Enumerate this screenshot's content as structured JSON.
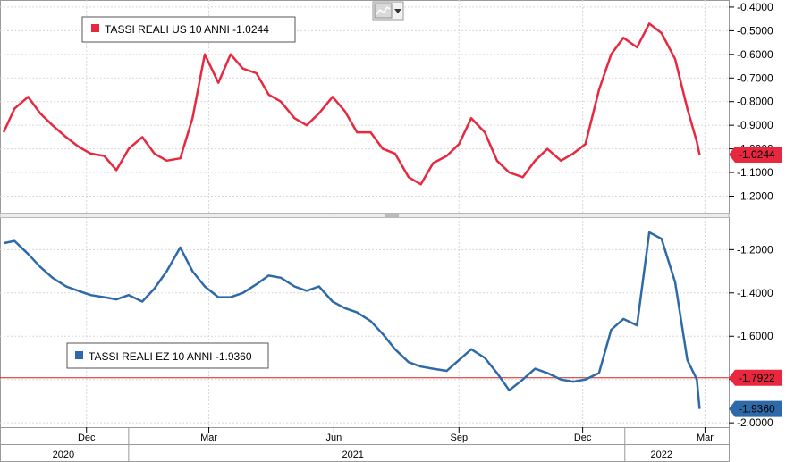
{
  "toolbar": {
    "chart_type_icon": "line-chart-icon",
    "dropdown_icon": "chevron-down-icon"
  },
  "chart_data": [
    {
      "type": "line",
      "legend": "TASSI REALI US 10 ANNI -1.0244",
      "series": [
        {
          "color": "#e8283f",
          "x": [
            "2020-10-01",
            "2020-10-09",
            "2020-10-19",
            "2020-10-28",
            "2020-11-06",
            "2020-11-16",
            "2020-11-25",
            "2020-12-04",
            "2020-12-14",
            "2020-12-23",
            "2021-01-01",
            "2021-01-11",
            "2021-01-20",
            "2021-01-29",
            "2021-02-08",
            "2021-02-17",
            "2021-02-26",
            "2021-03-08",
            "2021-03-17",
            "2021-03-26",
            "2021-04-05",
            "2021-04-14",
            "2021-04-23",
            "2021-05-03",
            "2021-05-12",
            "2021-05-21",
            "2021-05-31",
            "2021-06-09",
            "2021-06-18",
            "2021-06-28",
            "2021-07-07",
            "2021-07-16",
            "2021-07-26",
            "2021-08-04",
            "2021-08-13",
            "2021-08-23",
            "2021-09-01",
            "2021-09-10",
            "2021-09-20",
            "2021-09-29",
            "2021-10-08",
            "2021-10-18",
            "2021-10-27",
            "2021-11-05",
            "2021-11-15",
            "2021-11-24",
            "2021-12-03",
            "2021-12-13",
            "2021-12-22",
            "2021-12-31",
            "2022-01-10",
            "2022-01-19",
            "2022-01-28",
            "2022-02-07",
            "2022-02-16",
            "2022-02-23",
            "2022-02-25"
          ],
          "y": [
            -0.93,
            -0.83,
            -0.78,
            -0.85,
            -0.9,
            -0.95,
            -0.99,
            -1.02,
            -1.03,
            -1.09,
            -1.0,
            -0.95,
            -1.02,
            -1.05,
            -1.04,
            -0.87,
            -0.6,
            -0.72,
            -0.6,
            -0.66,
            -0.68,
            -0.77,
            -0.8,
            -0.87,
            -0.9,
            -0.85,
            -0.78,
            -0.84,
            -0.93,
            -0.93,
            -1.0,
            -1.02,
            -1.12,
            -1.15,
            -1.06,
            -1.03,
            -0.98,
            -0.87,
            -0.93,
            -1.05,
            -1.1,
            -1.12,
            -1.05,
            -1.0,
            -1.05,
            -1.02,
            -0.98,
            -0.75,
            -0.6,
            -0.53,
            -0.57,
            -0.47,
            -0.51,
            -0.62,
            -0.83,
            -0.97,
            -1.0244
          ]
        }
      ],
      "ylim": [
        -1.27,
        -0.37
      ],
      "yticks": [
        "-0.4000",
        "-0.5000",
        "-0.6000",
        "-0.7000",
        "-0.8000",
        "-0.9000",
        "-1.0000",
        "-1.1000",
        "-1.2000"
      ],
      "last_value_label": "-1.0244"
    },
    {
      "type": "line",
      "legend": "TASSI REALI EZ 10 ANNI -1.9360",
      "series": [
        {
          "color": "#2e6aa8",
          "x": [
            "2020-10-01",
            "2020-10-09",
            "2020-10-19",
            "2020-10-28",
            "2020-11-06",
            "2020-11-16",
            "2020-11-25",
            "2020-12-04",
            "2020-12-14",
            "2020-12-23",
            "2021-01-01",
            "2021-01-11",
            "2021-01-20",
            "2021-01-29",
            "2021-02-08",
            "2021-02-17",
            "2021-02-26",
            "2021-03-08",
            "2021-03-17",
            "2021-03-26",
            "2021-04-05",
            "2021-04-14",
            "2021-04-23",
            "2021-05-03",
            "2021-05-12",
            "2021-05-21",
            "2021-05-31",
            "2021-06-09",
            "2021-06-18",
            "2021-06-28",
            "2021-07-07",
            "2021-07-16",
            "2021-07-26",
            "2021-08-04",
            "2021-08-13",
            "2021-08-23",
            "2021-09-01",
            "2021-09-10",
            "2021-09-20",
            "2021-09-29",
            "2021-10-08",
            "2021-10-18",
            "2021-10-27",
            "2021-11-05",
            "2021-11-15",
            "2021-11-24",
            "2021-12-03",
            "2021-12-13",
            "2021-12-22",
            "2021-12-31",
            "2022-01-10",
            "2022-01-19",
            "2022-01-28",
            "2022-02-07",
            "2022-02-16",
            "2022-02-23",
            "2022-02-25"
          ],
          "y": [
            -1.17,
            -1.16,
            -1.22,
            -1.28,
            -1.33,
            -1.37,
            -1.39,
            -1.41,
            -1.42,
            -1.43,
            -1.41,
            -1.44,
            -1.38,
            -1.3,
            -1.19,
            -1.3,
            -1.37,
            -1.42,
            -1.42,
            -1.4,
            -1.36,
            -1.32,
            -1.33,
            -1.37,
            -1.39,
            -1.37,
            -1.44,
            -1.47,
            -1.49,
            -1.53,
            -1.59,
            -1.66,
            -1.72,
            -1.74,
            -1.75,
            -1.76,
            -1.71,
            -1.66,
            -1.7,
            -1.77,
            -1.85,
            -1.8,
            -1.75,
            -1.77,
            -1.8,
            -1.81,
            -1.8,
            -1.77,
            -1.57,
            -1.52,
            -1.55,
            -1.12,
            -1.15,
            -1.35,
            -1.71,
            -1.8,
            -1.936
          ]
        }
      ],
      "ylim": [
        -2.02,
        -1.05
      ],
      "yticks": [
        "-1.2000",
        "-1.4000",
        "-1.6000",
        "-1.8000",
        "-2.0000"
      ],
      "reference_line": {
        "value": -1.7922,
        "color": "#d42020",
        "label": "-1.7922"
      },
      "last_value_label": "-1.9360"
    }
  ],
  "x_axis": {
    "range": [
      "2020-10-01",
      "2022-03-04"
    ],
    "months": [
      {
        "label": "Dec",
        "x": "2020-12-01"
      },
      {
        "label": "Mar",
        "x": "2021-03-01"
      },
      {
        "label": "Jun",
        "x": "2021-06-01"
      },
      {
        "label": "Sep",
        "x": "2021-09-01"
      },
      {
        "label": "Dec",
        "x": "2021-12-01"
      },
      {
        "label": "Mar",
        "x": "2022-03-01"
      }
    ],
    "years": [
      {
        "label": "2020",
        "x": "2020-11-14"
      },
      {
        "label": "2021",
        "x": "2021-06-15"
      },
      {
        "label": "2022",
        "x": "2022-01-28"
      }
    ]
  }
}
